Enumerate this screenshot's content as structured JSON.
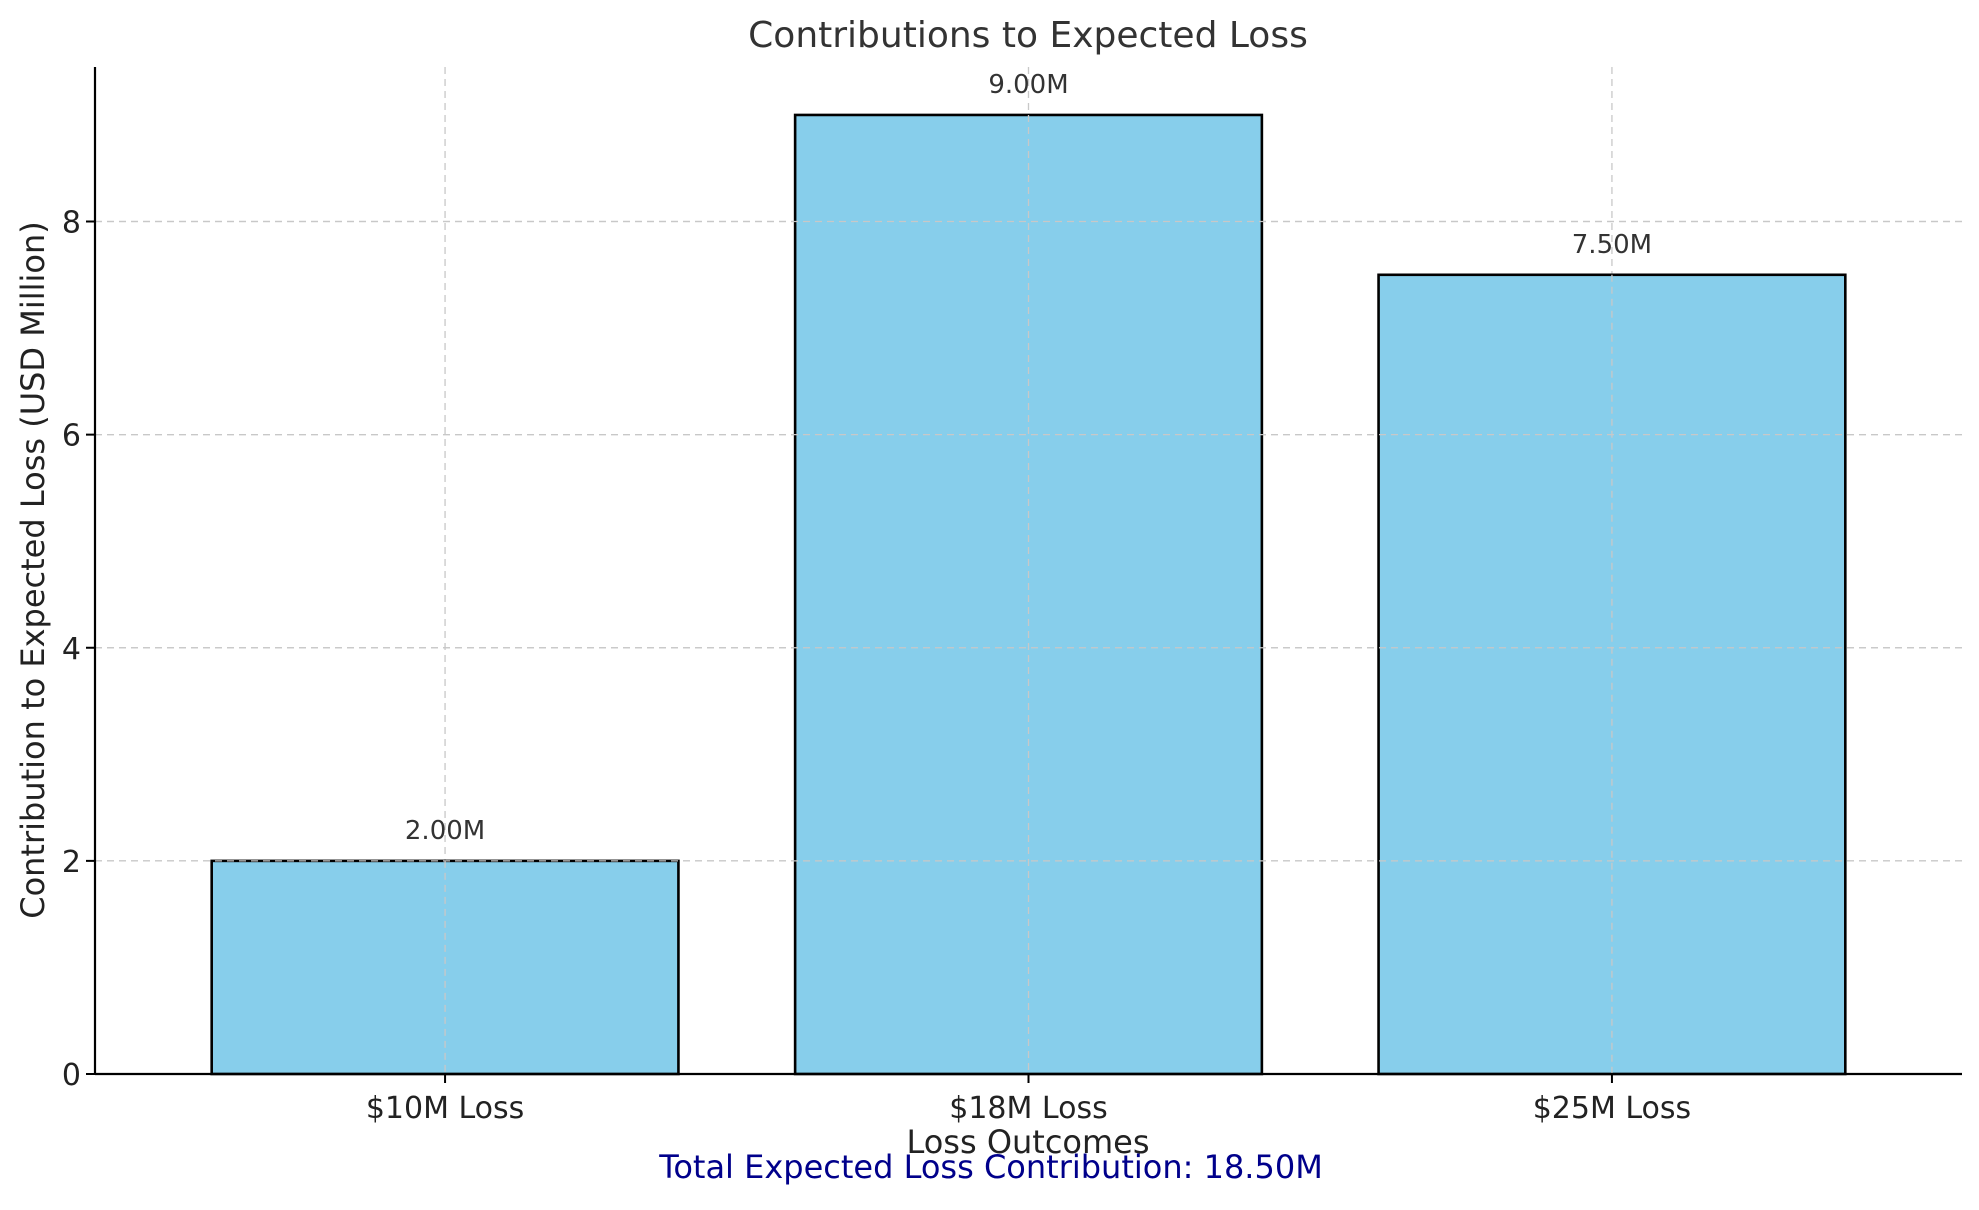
{
  "chart_data": {
    "type": "bar",
    "title": "Contributions to Expected Loss",
    "xlabel": "Loss Outcomes",
    "ylabel": "Contribution to Expected Loss (USD Million)",
    "categories": [
      "$10M Loss",
      "$18M Loss",
      "$25M Loss"
    ],
    "values": [
      2.0,
      9.0,
      7.5
    ],
    "data_labels": [
      "2.00M",
      "9.00M",
      "7.50M"
    ],
    "ylim": [
      0,
      9.45
    ],
    "yticks": [
      0,
      2,
      4,
      6,
      8
    ],
    "grid": true,
    "bar_color": "#87CEEB",
    "bar_edge_color": "#000000",
    "footer_note": "Total Expected Loss Contribution: 18.50M",
    "footer_color": "#00008B"
  }
}
